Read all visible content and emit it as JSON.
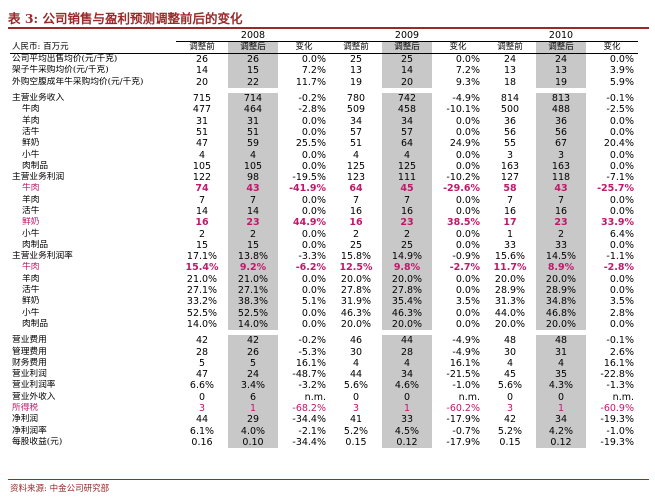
{
  "title": "表 3: 公司销售与盈利预测调整前后的变化",
  "unit_label": "人民币: 百万元",
  "years": [
    "2008",
    "2009",
    "2010"
  ],
  "subheaders": [
    "调整前",
    "调整后",
    "变化"
  ],
  "rows": [
    {
      "label": "公司平均出售均价(元/千克)",
      "indent": false,
      "highlight": false,
      "v": [
        "26",
        "26",
        "0.0%",
        "25",
        "25",
        "0.0%",
        "24",
        "24",
        "0.0%"
      ]
    },
    {
      "label": "架子牛采购均价(元/千克)",
      "indent": false,
      "highlight": false,
      "v": [
        "14",
        "15",
        "7.2%",
        "13",
        "14",
        "7.2%",
        "13",
        "13",
        "3.9%"
      ]
    },
    {
      "label": "外购空腹成年牛采购均价(元/千克)",
      "indent": false,
      "highlight": false,
      "v": [
        "20",
        "22",
        "11.7%",
        "19",
        "20",
        "9.3%",
        "18",
        "19",
        "5.9%"
      ]
    },
    {
      "spacer": true
    },
    {
      "label": "主营业务收入",
      "indent": false,
      "highlight": false,
      "v": [
        "715",
        "714",
        "-0.2%",
        "780",
        "742",
        "-4.9%",
        "814",
        "813",
        "-0.1%"
      ]
    },
    {
      "label": "牛肉",
      "indent": true,
      "highlight": false,
      "v": [
        "477",
        "464",
        "-2.8%",
        "509",
        "458",
        "-10.1%",
        "500",
        "488",
        "-2.5%"
      ]
    },
    {
      "label": "羊肉",
      "indent": true,
      "highlight": false,
      "v": [
        "31",
        "31",
        "0.0%",
        "34",
        "34",
        "0.0%",
        "36",
        "36",
        "0.0%"
      ]
    },
    {
      "label": "活牛",
      "indent": true,
      "highlight": false,
      "v": [
        "51",
        "51",
        "0.0%",
        "57",
        "57",
        "0.0%",
        "56",
        "56",
        "0.0%"
      ]
    },
    {
      "label": "鲜奶",
      "indent": true,
      "highlight": false,
      "v": [
        "47",
        "59",
        "25.5%",
        "51",
        "64",
        "24.9%",
        "55",
        "67",
        "20.4%"
      ]
    },
    {
      "label": "小牛",
      "indent": true,
      "highlight": false,
      "v": [
        "4",
        "4",
        "0.0%",
        "4",
        "4",
        "0.0%",
        "3",
        "3",
        "0.0%"
      ]
    },
    {
      "label": "肉制品",
      "indent": true,
      "highlight": false,
      "v": [
        "105",
        "105",
        "0.0%",
        "125",
        "125",
        "0.0%",
        "163",
        "163",
        "0.0%"
      ]
    },
    {
      "label": "主营业务利润",
      "indent": false,
      "highlight": false,
      "v": [
        "122",
        "98",
        "-19.5%",
        "123",
        "111",
        "-10.2%",
        "127",
        "118",
        "-7.1%"
      ]
    },
    {
      "label": "牛肉",
      "indent": true,
      "highlight": true,
      "v": [
        "74",
        "43",
        "-41.9%",
        "64",
        "45",
        "-29.6%",
        "58",
        "43",
        "-25.7%"
      ]
    },
    {
      "label": "羊肉",
      "indent": true,
      "highlight": false,
      "v": [
        "7",
        "7",
        "0.0%",
        "7",
        "7",
        "0.0%",
        "7",
        "7",
        "0.0%"
      ]
    },
    {
      "label": "活牛",
      "indent": true,
      "highlight": false,
      "v": [
        "14",
        "14",
        "0.0%",
        "16",
        "16",
        "0.0%",
        "16",
        "16",
        "0.0%"
      ]
    },
    {
      "label": "鲜奶",
      "indent": true,
      "highlight": true,
      "v": [
        "16",
        "23",
        "44.9%",
        "16",
        "23",
        "38.5%",
        "17",
        "23",
        "33.9%"
      ]
    },
    {
      "label": "小牛",
      "indent": true,
      "highlight": false,
      "v": [
        "2",
        "2",
        "0.0%",
        "2",
        "2",
        "0.0%",
        "1",
        "2",
        "6.4%"
      ]
    },
    {
      "label": "肉制品",
      "indent": true,
      "highlight": false,
      "v": [
        "15",
        "15",
        "0.0%",
        "25",
        "25",
        "0.0%",
        "33",
        "33",
        "0.0%"
      ]
    },
    {
      "label": "主营业务利润率",
      "indent": false,
      "highlight": false,
      "v": [
        "17.1%",
        "13.8%",
        "-3.3%",
        "15.8%",
        "14.9%",
        "-0.9%",
        "15.6%",
        "14.5%",
        "-1.1%"
      ]
    },
    {
      "label": "牛肉",
      "indent": true,
      "highlight": true,
      "v": [
        "15.4%",
        "9.2%",
        "-6.2%",
        "12.5%",
        "9.8%",
        "-2.7%",
        "11.7%",
        "8.9%",
        "-2.8%"
      ]
    },
    {
      "label": "羊肉",
      "indent": true,
      "highlight": false,
      "v": [
        "21.0%",
        "21.0%",
        "0.0%",
        "20.0%",
        "20.0%",
        "0.0%",
        "20.0%",
        "20.0%",
        "0.0%"
      ]
    },
    {
      "label": "活牛",
      "indent": true,
      "highlight": false,
      "v": [
        "27.1%",
        "27.1%",
        "0.0%",
        "27.8%",
        "27.8%",
        "0.0%",
        "28.9%",
        "28.9%",
        "0.0%"
      ]
    },
    {
      "label": "鲜奶",
      "indent": true,
      "highlight": false,
      "v": [
        "33.2%",
        "38.3%",
        "5.1%",
        "31.9%",
        "35.4%",
        "3.5%",
        "31.3%",
        "34.8%",
        "3.5%"
      ]
    },
    {
      "label": "小牛",
      "indent": true,
      "highlight": false,
      "v": [
        "52.5%",
        "52.5%",
        "0.0%",
        "46.3%",
        "46.3%",
        "0.0%",
        "44.0%",
        "46.8%",
        "2.8%"
      ]
    },
    {
      "label": "肉制品",
      "indent": true,
      "highlight": false,
      "v": [
        "14.0%",
        "14.0%",
        "0.0%",
        "20.0%",
        "20.0%",
        "0.0%",
        "20.0%",
        "20.0%",
        "0.0%"
      ]
    },
    {
      "spacer": true
    },
    {
      "label": "营业费用",
      "indent": false,
      "highlight": false,
      "v": [
        "42",
        "42",
        "-0.2%",
        "46",
        "44",
        "-4.9%",
        "48",
        "48",
        "-0.1%"
      ]
    },
    {
      "label": "管理费用",
      "indent": false,
      "highlight": false,
      "v": [
        "28",
        "26",
        "-5.3%",
        "30",
        "28",
        "-4.9%",
        "30",
        "31",
        "2.6%"
      ]
    },
    {
      "label": "财务费用",
      "indent": false,
      "highlight": false,
      "v": [
        "5",
        "5",
        "16.1%",
        "4",
        "4",
        "16.1%",
        "4",
        "4",
        "16.1%"
      ]
    },
    {
      "label": "营业利润",
      "indent": false,
      "highlight": false,
      "v": [
        "47",
        "24",
        "-48.7%",
        "44",
        "34",
        "-21.5%",
        "45",
        "35",
        "-22.8%"
      ]
    },
    {
      "label": "营业利润率",
      "indent": false,
      "highlight": false,
      "v": [
        "6.6%",
        "3.4%",
        "-3.2%",
        "5.6%",
        "4.6%",
        "-1.0%",
        "5.6%",
        "4.3%",
        "-1.3%"
      ]
    },
    {
      "label": "营业外收入",
      "indent": false,
      "highlight": false,
      "v": [
        "0",
        "6",
        "n.m.",
        "0",
        "0",
        "n.m.",
        "0",
        "0",
        "n.m."
      ]
    },
    {
      "label": "所得税",
      "indent": false,
      "highlight": false,
      "pink": true,
      "v": [
        "3",
        "1",
        "-68.2%",
        "3",
        "1",
        "-60.2%",
        "3",
        "1",
        "-60.9%"
      ]
    },
    {
      "label": "净利润",
      "indent": false,
      "highlight": false,
      "v": [
        "44",
        "29",
        "-34.4%",
        "41",
        "33",
        "-17.9%",
        "42",
        "34",
        "-19.3%"
      ]
    },
    {
      "label": "净利润率",
      "indent": false,
      "highlight": false,
      "v": [
        "6.1%",
        "4.0%",
        "-2.1%",
        "5.2%",
        "4.5%",
        "-0.7%",
        "5.2%",
        "4.2%",
        "-1.0%"
      ]
    },
    {
      "label": "每股收益(元)",
      "indent": false,
      "highlight": false,
      "v": [
        "0.16",
        "0.10",
        "-34.4%",
        "0.15",
        "0.12",
        "-17.9%",
        "0.15",
        "0.12",
        "-19.3%"
      ]
    }
  ],
  "source": "资料来源: 中金公司研究部"
}
